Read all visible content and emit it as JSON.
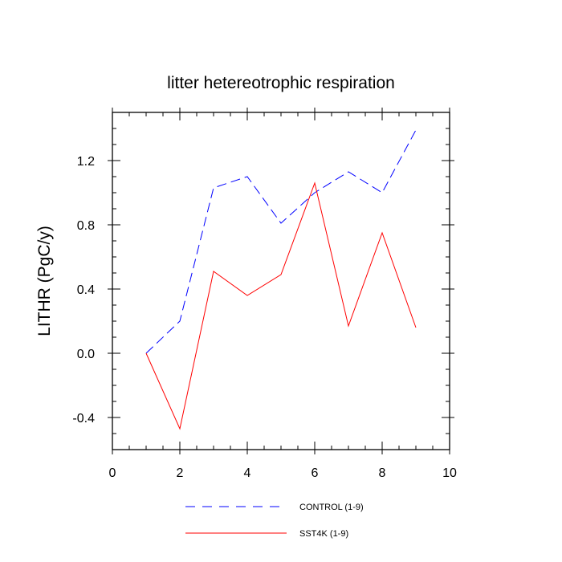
{
  "chart_data": {
    "type": "line",
    "title": "litter hetereotrophic respiration",
    "xlabel": "",
    "ylabel": "LITHR  (PgC/y)",
    "xlim": [
      0,
      10
    ],
    "ylim": [
      -0.6,
      1.5
    ],
    "x_ticks": [
      0,
      2,
      4,
      6,
      8,
      10
    ],
    "y_ticks": [
      -0.4,
      0.0,
      0.4,
      0.8,
      1.2
    ],
    "x_tick_labels": [
      "0",
      "2",
      "4",
      "6",
      "8",
      "10"
    ],
    "y_tick_labels": [
      "-0.4",
      "0.0",
      "0.4",
      "0.8",
      "1.2"
    ],
    "x": [
      1,
      2,
      3,
      4,
      5,
      6,
      7,
      8,
      9
    ],
    "series": [
      {
        "name": "CONTROL (1-9)",
        "color": "#0000ff",
        "dash": "dashed",
        "values": [
          0.0,
          0.2,
          1.03,
          1.1,
          0.81,
          1.0,
          1.13,
          1.0,
          1.39
        ]
      },
      {
        "name": "SST4K (1-9)",
        "color": "#ff0000",
        "dash": "solid",
        "values": [
          0.0,
          -0.47,
          0.51,
          0.36,
          0.49,
          1.06,
          0.17,
          0.75,
          0.16
        ]
      }
    ],
    "legend_position": "bottom"
  }
}
